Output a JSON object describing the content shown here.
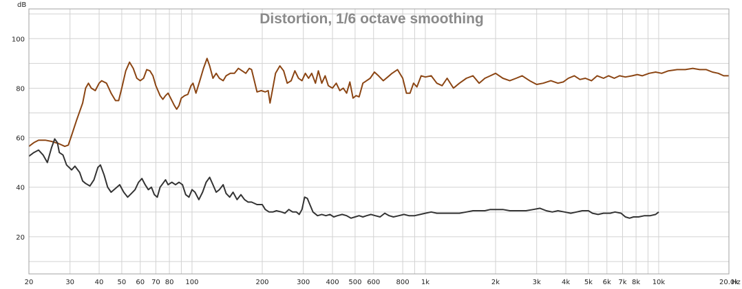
{
  "chart_data": {
    "type": "line",
    "title": "Distortion, 1/6 octave smoothing",
    "ylabel": "dB",
    "x_unit": "Hz",
    "x_scale": "log",
    "xlim": [
      20,
      20000
    ],
    "ylim": [
      5,
      112
    ],
    "grid": true,
    "colors": {
      "series1": "#8b4513",
      "series2": "#333333",
      "grid": "#d2d2d2",
      "frame": "#a0a0a0"
    },
    "y_ticks": [
      20,
      40,
      60,
      80,
      100
    ],
    "y_tick_labels": [
      "20",
      "40",
      "60",
      "80",
      "100"
    ],
    "x_ticks": [
      20,
      30,
      40,
      50,
      60,
      70,
      80,
      100,
      200,
      300,
      400,
      500,
      600,
      800,
      1000,
      2000,
      3000,
      4000,
      5000,
      6000,
      7000,
      8000,
      10000,
      20000
    ],
    "x_tick_labels": [
      "20",
      "30",
      "40",
      "50",
      "60",
      "70",
      "80",
      "100",
      "200",
      "300",
      "400",
      "500",
      "600",
      "800",
      "1k",
      "2k",
      "3k",
      "4k",
      "5k",
      "6k",
      "7k",
      "8k",
      "10k",
      "20.0k"
    ],
    "x_minor_grid": [
      90,
      900,
      9000
    ],
    "series": [
      {
        "color": "#8b4513",
        "points": [
          [
            20,
            56.5
          ],
          [
            21,
            58
          ],
          [
            22,
            59
          ],
          [
            23.5,
            59
          ],
          [
            25,
            58.5
          ],
          [
            27,
            57.5
          ],
          [
            28.5,
            56.5
          ],
          [
            29.5,
            57
          ],
          [
            30.5,
            61
          ],
          [
            32,
            67
          ],
          [
            34,
            74
          ],
          [
            35,
            80
          ],
          [
            36,
            82
          ],
          [
            37,
            80
          ],
          [
            38.5,
            79
          ],
          [
            40,
            82
          ],
          [
            41,
            83
          ],
          [
            43,
            82
          ],
          [
            45,
            78
          ],
          [
            47,
            75
          ],
          [
            48.5,
            75
          ],
          [
            50,
            80
          ],
          [
            52,
            87
          ],
          [
            54,
            90.5
          ],
          [
            56,
            88
          ],
          [
            58,
            84
          ],
          [
            60,
            83
          ],
          [
            62,
            84
          ],
          [
            64,
            87.5
          ],
          [
            66,
            87
          ],
          [
            68,
            85
          ],
          [
            70,
            81
          ],
          [
            73,
            77
          ],
          [
            75,
            75.5
          ],
          [
            77,
            77
          ],
          [
            79,
            78
          ],
          [
            81,
            76
          ],
          [
            84,
            73
          ],
          [
            86,
            71.5
          ],
          [
            88,
            73
          ],
          [
            90,
            76
          ],
          [
            93,
            77
          ],
          [
            96,
            77.5
          ],
          [
            99,
            81
          ],
          [
            101,
            82
          ],
          [
            104,
            78
          ],
          [
            108,
            83
          ],
          [
            112,
            88
          ],
          [
            116,
            92
          ],
          [
            119,
            89
          ],
          [
            123,
            84
          ],
          [
            127,
            86
          ],
          [
            131,
            84
          ],
          [
            136,
            83
          ],
          [
            140,
            85
          ],
          [
            146,
            86
          ],
          [
            152,
            86
          ],
          [
            158,
            88
          ],
          [
            164,
            87
          ],
          [
            170,
            86
          ],
          [
            176,
            88
          ],
          [
            180,
            87.5
          ],
          [
            185,
            83
          ],
          [
            190,
            78.5
          ],
          [
            198,
            79
          ],
          [
            206,
            78.5
          ],
          [
            212,
            79
          ],
          [
            216,
            74
          ],
          [
            220,
            78
          ],
          [
            228,
            86
          ],
          [
            238,
            89
          ],
          [
            247,
            87
          ],
          [
            256,
            82
          ],
          [
            266,
            83
          ],
          [
            276,
            87
          ],
          [
            286,
            84
          ],
          [
            296,
            83
          ],
          [
            306,
            86
          ],
          [
            316,
            84
          ],
          [
            326,
            86
          ],
          [
            338,
            82
          ],
          [
            348,
            87
          ],
          [
            360,
            82
          ],
          [
            372,
            85
          ],
          [
            384,
            81
          ],
          [
            400,
            80
          ],
          [
            415,
            82
          ],
          [
            430,
            79
          ],
          [
            445,
            80
          ],
          [
            460,
            78
          ],
          [
            475,
            82.5
          ],
          [
            490,
            76
          ],
          [
            505,
            77
          ],
          [
            520,
            76.5
          ],
          [
            540,
            82
          ],
          [
            560,
            83
          ],
          [
            580,
            84
          ],
          [
            605,
            86.5
          ],
          [
            630,
            85
          ],
          [
            660,
            83
          ],
          [
            690,
            84.5
          ],
          [
            720,
            86
          ],
          [
            760,
            87.5
          ],
          [
            800,
            84
          ],
          [
            830,
            78
          ],
          [
            860,
            78
          ],
          [
            890,
            82
          ],
          [
            920,
            80.5
          ],
          [
            960,
            85
          ],
          [
            1000,
            84.5
          ],
          [
            1060,
            85
          ],
          [
            1120,
            82
          ],
          [
            1180,
            81
          ],
          [
            1240,
            84
          ],
          [
            1320,
            80
          ],
          [
            1400,
            82
          ],
          [
            1500,
            84
          ],
          [
            1600,
            85
          ],
          [
            1700,
            82
          ],
          [
            1800,
            84
          ],
          [
            1900,
            85
          ],
          [
            2000,
            86
          ],
          [
            2150,
            84
          ],
          [
            2300,
            83
          ],
          [
            2450,
            84
          ],
          [
            2600,
            85
          ],
          [
            2800,
            83
          ],
          [
            3000,
            81.5
          ],
          [
            3200,
            82
          ],
          [
            3450,
            83
          ],
          [
            3700,
            82
          ],
          [
            3900,
            82.5
          ],
          [
            4100,
            84
          ],
          [
            4350,
            85
          ],
          [
            4600,
            83.5
          ],
          [
            4850,
            84
          ],
          [
            5150,
            83
          ],
          [
            5450,
            85
          ],
          [
            5800,
            84
          ],
          [
            6100,
            85
          ],
          [
            6450,
            84
          ],
          [
            6800,
            85
          ],
          [
            7200,
            84.5
          ],
          [
            7700,
            85
          ],
          [
            8100,
            85.5
          ],
          [
            8500,
            85
          ],
          [
            9100,
            86
          ],
          [
            9700,
            86.5
          ],
          [
            10300,
            86
          ],
          [
            11000,
            87
          ],
          [
            12000,
            87.5
          ],
          [
            13000,
            87.5
          ],
          [
            14000,
            88
          ],
          [
            15000,
            87.5
          ],
          [
            16000,
            87.5
          ],
          [
            17000,
            86.5
          ],
          [
            18000,
            86
          ],
          [
            19000,
            85
          ],
          [
            20000,
            85
          ]
        ]
      },
      {
        "color": "#333333",
        "points": [
          [
            20,
            52.5
          ],
          [
            21,
            54
          ],
          [
            22,
            55
          ],
          [
            23,
            53
          ],
          [
            24,
            50
          ],
          [
            25,
            56
          ],
          [
            25.8,
            59.5
          ],
          [
            26.5,
            58
          ],
          [
            27,
            54
          ],
          [
            28,
            53
          ],
          [
            29,
            49
          ],
          [
            30.5,
            47
          ],
          [
            31.5,
            48.5
          ],
          [
            33,
            46
          ],
          [
            34,
            42.5
          ],
          [
            35,
            41.5
          ],
          [
            36.5,
            40.5
          ],
          [
            38,
            43
          ],
          [
            39.5,
            48
          ],
          [
            40.5,
            49
          ],
          [
            42,
            45
          ],
          [
            43.5,
            40
          ],
          [
            45,
            38
          ],
          [
            47,
            39.5
          ],
          [
            49,
            41
          ],
          [
            51,
            38
          ],
          [
            53,
            36
          ],
          [
            55,
            37.5
          ],
          [
            57,
            39
          ],
          [
            59,
            42
          ],
          [
            61,
            43.5
          ],
          [
            63,
            41
          ],
          [
            65,
            39
          ],
          [
            67,
            40
          ],
          [
            69,
            37
          ],
          [
            71,
            36
          ],
          [
            73,
            40
          ],
          [
            75,
            41.5
          ],
          [
            77,
            43
          ],
          [
            79,
            41
          ],
          [
            82,
            42
          ],
          [
            85,
            41
          ],
          [
            88,
            42
          ],
          [
            91,
            41
          ],
          [
            94,
            37
          ],
          [
            97,
            36
          ],
          [
            100,
            39
          ],
          [
            103,
            38
          ],
          [
            107,
            35
          ],
          [
            111,
            38
          ],
          [
            115,
            42
          ],
          [
            119,
            44
          ],
          [
            123,
            41
          ],
          [
            127,
            38
          ],
          [
            131,
            39
          ],
          [
            136,
            41
          ],
          [
            140,
            37.5
          ],
          [
            145,
            36
          ],
          [
            150,
            38
          ],
          [
            156,
            35
          ],
          [
            162,
            37
          ],
          [
            168,
            35
          ],
          [
            174,
            34
          ],
          [
            180,
            34
          ],
          [
            190,
            33
          ],
          [
            200,
            33
          ],
          [
            206,
            31
          ],
          [
            214,
            30
          ],
          [
            222,
            30
          ],
          [
            230,
            30.5
          ],
          [
            242,
            30
          ],
          [
            250,
            29.5
          ],
          [
            260,
            31
          ],
          [
            270,
            30
          ],
          [
            280,
            30
          ],
          [
            288,
            29
          ],
          [
            296,
            31
          ],
          [
            304,
            36
          ],
          [
            312,
            35.5
          ],
          [
            320,
            33
          ],
          [
            330,
            30
          ],
          [
            345,
            28.5
          ],
          [
            360,
            29
          ],
          [
            375,
            28.5
          ],
          [
            390,
            29
          ],
          [
            405,
            28
          ],
          [
            420,
            28.5
          ],
          [
            440,
            29
          ],
          [
            460,
            28.5
          ],
          [
            480,
            27.5
          ],
          [
            500,
            28
          ],
          [
            520,
            28.5
          ],
          [
            540,
            28
          ],
          [
            560,
            28.5
          ],
          [
            585,
            29
          ],
          [
            610,
            28.5
          ],
          [
            640,
            28
          ],
          [
            670,
            29.5
          ],
          [
            700,
            28.5
          ],
          [
            730,
            28
          ],
          [
            770,
            28.5
          ],
          [
            810,
            29
          ],
          [
            850,
            28.5
          ],
          [
            900,
            28.5
          ],
          [
            950,
            29
          ],
          [
            1000,
            29.5
          ],
          [
            1060,
            30
          ],
          [
            1120,
            29.5
          ],
          [
            1200,
            29.5
          ],
          [
            1300,
            29.5
          ],
          [
            1400,
            29.5
          ],
          [
            1500,
            30
          ],
          [
            1600,
            30.5
          ],
          [
            1700,
            30.5
          ],
          [
            1800,
            30.5
          ],
          [
            1900,
            31
          ],
          [
            2000,
            31
          ],
          [
            2150,
            31
          ],
          [
            2300,
            30.5
          ],
          [
            2500,
            30.5
          ],
          [
            2700,
            30.5
          ],
          [
            2900,
            31
          ],
          [
            3100,
            31.5
          ],
          [
            3300,
            30.5
          ],
          [
            3500,
            30
          ],
          [
            3700,
            30.5
          ],
          [
            3950,
            30
          ],
          [
            4200,
            29.5
          ],
          [
            4450,
            30
          ],
          [
            4700,
            30.5
          ],
          [
            5000,
            30.5
          ],
          [
            5200,
            29.5
          ],
          [
            5500,
            29
          ],
          [
            5800,
            29.5
          ],
          [
            6200,
            29.5
          ],
          [
            6500,
            30
          ],
          [
            6900,
            29.5
          ],
          [
            7200,
            28
          ],
          [
            7500,
            27.5
          ],
          [
            7800,
            28
          ],
          [
            8200,
            28
          ],
          [
            8700,
            28.5
          ],
          [
            9200,
            28.5
          ],
          [
            9700,
            29
          ],
          [
            10000,
            30
          ]
        ]
      }
    ]
  }
}
